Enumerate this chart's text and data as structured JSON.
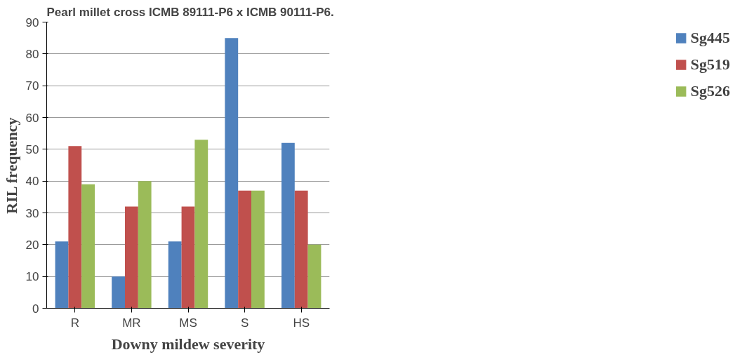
{
  "chart_data": {
    "type": "bar",
    "title": "Pearl millet cross ICMB 89111-P6 x ICMB 90111-P6.",
    "xlabel": "Downy mildew severity",
    "ylabel": "RIL frequency",
    "categories": [
      "R",
      "MR",
      "MS",
      "S",
      "HS"
    ],
    "series": [
      {
        "name": "Sg445",
        "color": "#4f81bd",
        "values": [
          21,
          10,
          21,
          85,
          52
        ]
      },
      {
        "name": "Sg519",
        "color": "#c0504d",
        "values": [
          51,
          32,
          32,
          37,
          37
        ]
      },
      {
        "name": "Sg526",
        "color": "#9bbb59",
        "values": [
          39,
          40,
          53,
          37,
          20
        ]
      }
    ],
    "ylim": [
      0,
      90
    ],
    "yticks": [
      0,
      10,
      20,
      30,
      40,
      50,
      60,
      70,
      80,
      90
    ],
    "grid": "y",
    "legend": "right"
  }
}
